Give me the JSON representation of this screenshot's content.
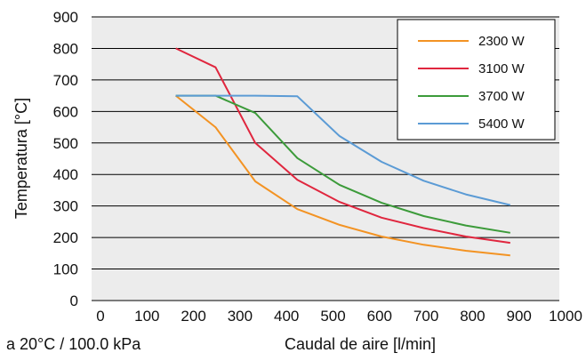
{
  "chart_data": {
    "type": "line",
    "title": "",
    "xlabel": "Caudal de aire [l/min]",
    "ylabel": "Temperatura [°C]",
    "note": "a 20°C / 100.0 kPa",
    "xlim": [
      0,
      1000
    ],
    "ylim": [
      0,
      900
    ],
    "xticks": [
      "0",
      "100",
      "200",
      "300",
      "400",
      "500",
      "600",
      "700",
      "800",
      "900",
      "1000"
    ],
    "yticks": [
      "0",
      "100",
      "200",
      "300",
      "400",
      "500",
      "600",
      "700",
      "800",
      "900"
    ],
    "grid": "horizontal",
    "legend_position": "top-right",
    "background": "#ececec",
    "series": [
      {
        "name": "2300 W",
        "color": "#f39323",
        "points": [
          [
            180,
            650
          ],
          [
            265,
            550
          ],
          [
            350,
            378
          ],
          [
            440,
            290
          ],
          [
            530,
            240
          ],
          [
            620,
            203
          ],
          [
            710,
            177
          ],
          [
            800,
            158
          ],
          [
            895,
            143
          ]
        ]
      },
      {
        "name": "3100 W",
        "color": "#e0263e",
        "points": [
          [
            180,
            800
          ],
          [
            265,
            740
          ],
          [
            350,
            500
          ],
          [
            440,
            383
          ],
          [
            530,
            313
          ],
          [
            620,
            263
          ],
          [
            710,
            230
          ],
          [
            800,
            203
          ],
          [
            895,
            183
          ]
        ]
      },
      {
        "name": "3700 W",
        "color": "#3c9b3a",
        "points": [
          [
            180,
            650
          ],
          [
            265,
            650
          ],
          [
            350,
            595
          ],
          [
            440,
            452
          ],
          [
            530,
            367
          ],
          [
            620,
            310
          ],
          [
            710,
            268
          ],
          [
            800,
            238
          ],
          [
            895,
            215
          ]
        ]
      },
      {
        "name": "5400 W",
        "color": "#5b9bd5",
        "points": [
          [
            180,
            650
          ],
          [
            265,
            650
          ],
          [
            350,
            650
          ],
          [
            440,
            648
          ],
          [
            530,
            522
          ],
          [
            620,
            440
          ],
          [
            710,
            380
          ],
          [
            800,
            337
          ],
          [
            895,
            303
          ]
        ]
      }
    ]
  }
}
